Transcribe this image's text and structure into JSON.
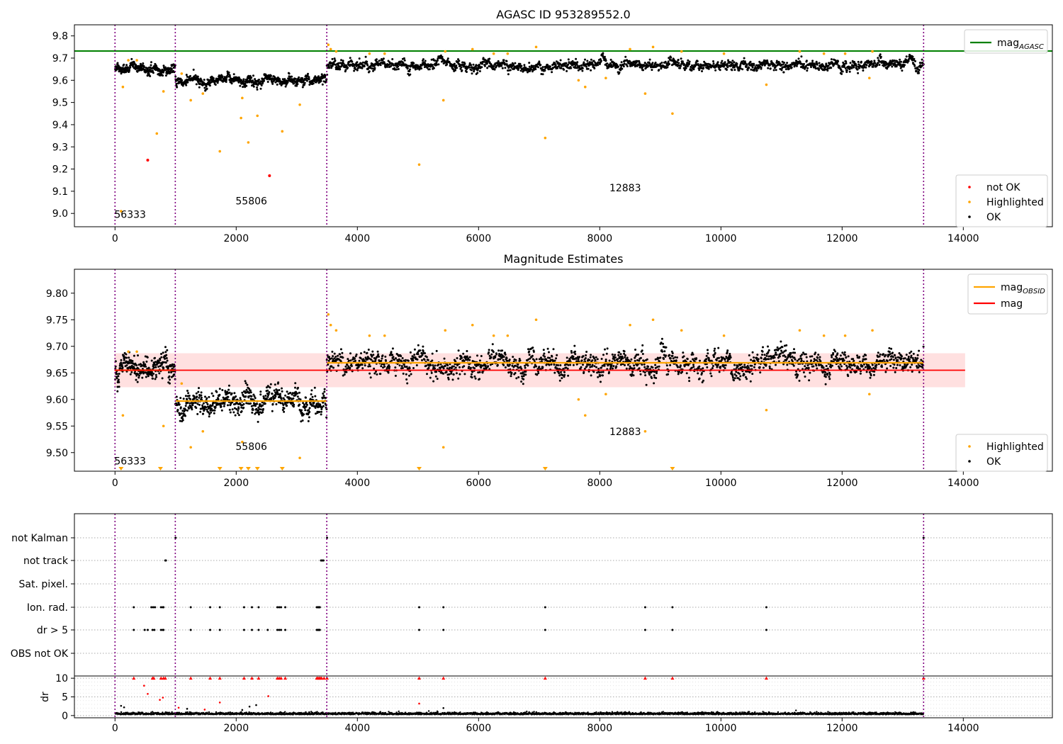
{
  "chart_data": [
    {
      "type": "scatter",
      "title": "AGASC ID 953289552.0",
      "xlim": [
        -670,
        15470
      ],
      "ylim": [
        8.94,
        9.85
      ],
      "x_ticks": [
        0,
        2000,
        4000,
        6000,
        8000,
        10000,
        12000,
        14000
      ],
      "y_ticks": [
        9.0,
        9.1,
        9.2,
        9.3,
        9.4,
        9.5,
        9.6,
        9.7,
        9.8
      ],
      "y_tick_decimals": 1,
      "obs_boundaries": [
        0,
        995,
        3495,
        13345
      ],
      "obs_labels": [
        {
          "text": "56333",
          "x": 250,
          "y": 8.98
        },
        {
          "text": "55806",
          "x": 2250,
          "y": 9.04
        },
        {
          "text": "12883",
          "x": 8420,
          "y": 9.1
        }
      ],
      "segments": [
        {
          "x0": 0,
          "x1": 995,
          "level": 9.655,
          "noise": 0.012,
          "n": 260
        },
        {
          "x0": 995,
          "x1": 3495,
          "level": 9.597,
          "noise": 0.012,
          "n": 600
        },
        {
          "x0": 3495,
          "x1": 13345,
          "level": 9.668,
          "noise": 0.012,
          "n": 1800
        }
      ],
      "mag_agasc": 9.732,
      "highlighted_outliers": [
        [
          100,
          9.01
        ],
        [
          130,
          9.57
        ],
        [
          690,
          9.36
        ],
        [
          800,
          9.55
        ],
        [
          1100,
          9.63
        ],
        [
          1250,
          9.51
        ],
        [
          1450,
          9.54
        ],
        [
          1730,
          9.28
        ],
        [
          2080,
          9.43
        ],
        [
          2100,
          9.52
        ],
        [
          2200,
          9.32
        ],
        [
          2350,
          9.44
        ],
        [
          2760,
          9.37
        ],
        [
          3050,
          9.49
        ],
        [
          5020,
          9.22
        ],
        [
          5420,
          9.51
        ],
        [
          7100,
          9.34
        ],
        [
          7650,
          9.6
        ],
        [
          7760,
          9.57
        ],
        [
          8100,
          9.61
        ],
        [
          8750,
          9.54
        ],
        [
          9200,
          9.45
        ],
        [
          10750,
          9.58
        ],
        [
          12450,
          9.61
        ]
      ],
      "highlighted_spikes": [
        [
          220,
          9.69
        ],
        [
          360,
          9.69
        ],
        [
          3520,
          9.76
        ],
        [
          3560,
          9.74
        ],
        [
          3650,
          9.73
        ],
        [
          4200,
          9.72
        ],
        [
          4450,
          9.72
        ],
        [
          5450,
          9.73
        ],
        [
          5900,
          9.74
        ],
        [
          6250,
          9.72
        ],
        [
          6480,
          9.72
        ],
        [
          6950,
          9.75
        ],
        [
          8500,
          9.74
        ],
        [
          8880,
          9.75
        ],
        [
          9350,
          9.73
        ],
        [
          10050,
          9.72
        ],
        [
          11300,
          9.73
        ],
        [
          11700,
          9.72
        ],
        [
          12050,
          9.72
        ],
        [
          12500,
          9.73
        ]
      ],
      "not_ok_points": [
        [
          540,
          9.24
        ],
        [
          2550,
          9.17
        ]
      ],
      "legend_upper": [
        {
          "label": "mag",
          "sub": "AGASC",
          "color": "#008000"
        }
      ],
      "legend_lower": [
        {
          "label": "not OK",
          "color": "#ff0000"
        },
        {
          "label": "Highlighted",
          "color": "#ffa500"
        },
        {
          "label": "OK",
          "color": "#000000"
        }
      ]
    },
    {
      "type": "scatter",
      "title": "Magnitude Estimates",
      "xlim": [
        -670,
        15470
      ],
      "ylim": [
        9.465,
        9.845
      ],
      "x_ticks": [
        0,
        2000,
        4000,
        6000,
        8000,
        10000,
        12000,
        14000
      ],
      "y_ticks": [
        9.5,
        9.55,
        9.6,
        9.65,
        9.7,
        9.75,
        9.8
      ],
      "y_tick_decimals": 2,
      "obs_boundaries": [
        0,
        995,
        3495,
        13345
      ],
      "obs_labels": [
        {
          "text": "56333",
          "x": 250,
          "y": 9.478
        },
        {
          "text": "55806",
          "x": 2250,
          "y": 9.505
        },
        {
          "text": "12883",
          "x": 8420,
          "y": 9.533
        }
      ],
      "segments": [
        {
          "x0": 0,
          "x1": 995,
          "level": 9.655,
          "noise": 0.012,
          "n": 260
        },
        {
          "x0": 995,
          "x1": 3495,
          "level": 9.597,
          "noise": 0.012,
          "n": 600
        },
        {
          "x0": 3495,
          "x1": 13345,
          "level": 9.668,
          "noise": 0.012,
          "n": 1800
        }
      ],
      "mag_obsid": [
        {
          "x0": 0,
          "x1": 995,
          "y": 9.655
        },
        {
          "x0": 995,
          "x1": 3495,
          "y": 9.597
        },
        {
          "x0": 3495,
          "x1": 13345,
          "y": 9.669
        }
      ],
      "mag": 9.655,
      "mag_band": [
        9.623,
        9.687
      ],
      "mag_band_x": [
        -10,
        14030
      ],
      "highlighted_outliers": [
        [
          130,
          9.57
        ],
        [
          800,
          9.55
        ],
        [
          1100,
          9.63
        ],
        [
          1250,
          9.51
        ],
        [
          1450,
          9.54
        ],
        [
          2100,
          9.52
        ],
        [
          3050,
          9.49
        ],
        [
          5420,
          9.51
        ],
        [
          7650,
          9.6
        ],
        [
          7760,
          9.57
        ],
        [
          8100,
          9.61
        ],
        [
          8750,
          9.54
        ],
        [
          10750,
          9.58
        ],
        [
          12450,
          9.61
        ]
      ],
      "highlighted_spikes": [
        [
          220,
          9.69
        ],
        [
          360,
          9.69
        ],
        [
          3520,
          9.76
        ],
        [
          3560,
          9.74
        ],
        [
          3650,
          9.73
        ],
        [
          4200,
          9.72
        ],
        [
          4450,
          9.72
        ],
        [
          5450,
          9.73
        ],
        [
          5900,
          9.74
        ],
        [
          6250,
          9.72
        ],
        [
          6480,
          9.72
        ],
        [
          6950,
          9.75
        ],
        [
          8500,
          9.74
        ],
        [
          8880,
          9.75
        ],
        [
          9350,
          9.73
        ],
        [
          10050,
          9.72
        ],
        [
          11300,
          9.73
        ],
        [
          11700,
          9.72
        ],
        [
          12050,
          9.72
        ],
        [
          12500,
          9.73
        ]
      ],
      "below_range_markers": [
        100,
        750,
        1730,
        2080,
        2200,
        2350,
        2760,
        5020,
        7100,
        9200
      ],
      "legend_upper": [
        {
          "label": "mag",
          "sub": "OBSID",
          "color": "#ffa500"
        },
        {
          "label": "mag",
          "sub": "",
          "color": "#ff0000"
        }
      ],
      "legend_lower": [
        {
          "label": "Highlighted",
          "color": "#ffa500"
        },
        {
          "label": "OK",
          "color": "#000000"
        }
      ]
    },
    {
      "type": "scatter",
      "xlim": [
        -670,
        15470
      ],
      "x_ticks": [
        0,
        2000,
        4000,
        6000,
        8000,
        10000,
        12000,
        14000
      ],
      "obs_boundaries": [
        0,
        995,
        3495,
        13345
      ],
      "flag_categories": [
        "not Kalman",
        "not track",
        "Sat. pixel.",
        "Ion. rad.",
        "dr > 5",
        "OBS not OK"
      ],
      "flag_points": {
        "not Kalman": [
          1000,
          3500,
          13345
        ],
        "not track": [
          830,
          840,
          3400,
          3420,
          3440
        ],
        "Sat. pixel.": [],
        "Ion. rad.": [
          310,
          600,
          630,
          660,
          760,
          790,
          800,
          1250,
          1570,
          1730,
          2130,
          2260,
          2370,
          2680,
          2710,
          2740,
          2810,
          3330,
          3350,
          3360,
          3370,
          3380,
          5020,
          5420,
          7100,
          8750,
          9200,
          10750
        ],
        "dr > 5": [
          310,
          490,
          540,
          620,
          650,
          760,
          790,
          800,
          1250,
          1570,
          1730,
          2130,
          2260,
          2370,
          2520,
          2680,
          2710,
          2740,
          2810,
          3330,
          3350,
          3360,
          3370,
          3380,
          5020,
          5420,
          7100,
          8750,
          9200,
          10750
        ],
        "OBS not OK": []
      },
      "dr_ylabel": "dr",
      "dr_ylim": [
        -0.6,
        10.6
      ],
      "dr_ticks": [
        0,
        5,
        10
      ],
      "dr_capped": [
        310,
        620,
        640,
        760,
        800,
        830,
        1250,
        1570,
        1730,
        2130,
        2260,
        2370,
        2680,
        2710,
        2740,
        2810,
        3330,
        3350,
        3370,
        3390,
        3410,
        3450,
        3500,
        5020,
        5420,
        7100,
        8750,
        9200,
        10750,
        13345
      ],
      "dr_red_scatter": [
        [
          480,
          8.0
        ],
        [
          540,
          5.8
        ],
        [
          740,
          4.2
        ],
        [
          790,
          4.8
        ],
        [
          1730,
          3.5
        ],
        [
          2530,
          5.2
        ],
        [
          5020,
          3.2
        ],
        [
          1050,
          2.1
        ],
        [
          1480,
          1.6
        ]
      ],
      "dr_black_scatter": [
        [
          100,
          2.6
        ],
        [
          150,
          2.2
        ],
        [
          1190,
          1.8
        ],
        [
          2100,
          1.5
        ],
        [
          2220,
          2.4
        ],
        [
          2330,
          2.8
        ],
        [
          5420,
          2.0
        ]
      ],
      "dr_baseline": 0.4
    }
  ]
}
